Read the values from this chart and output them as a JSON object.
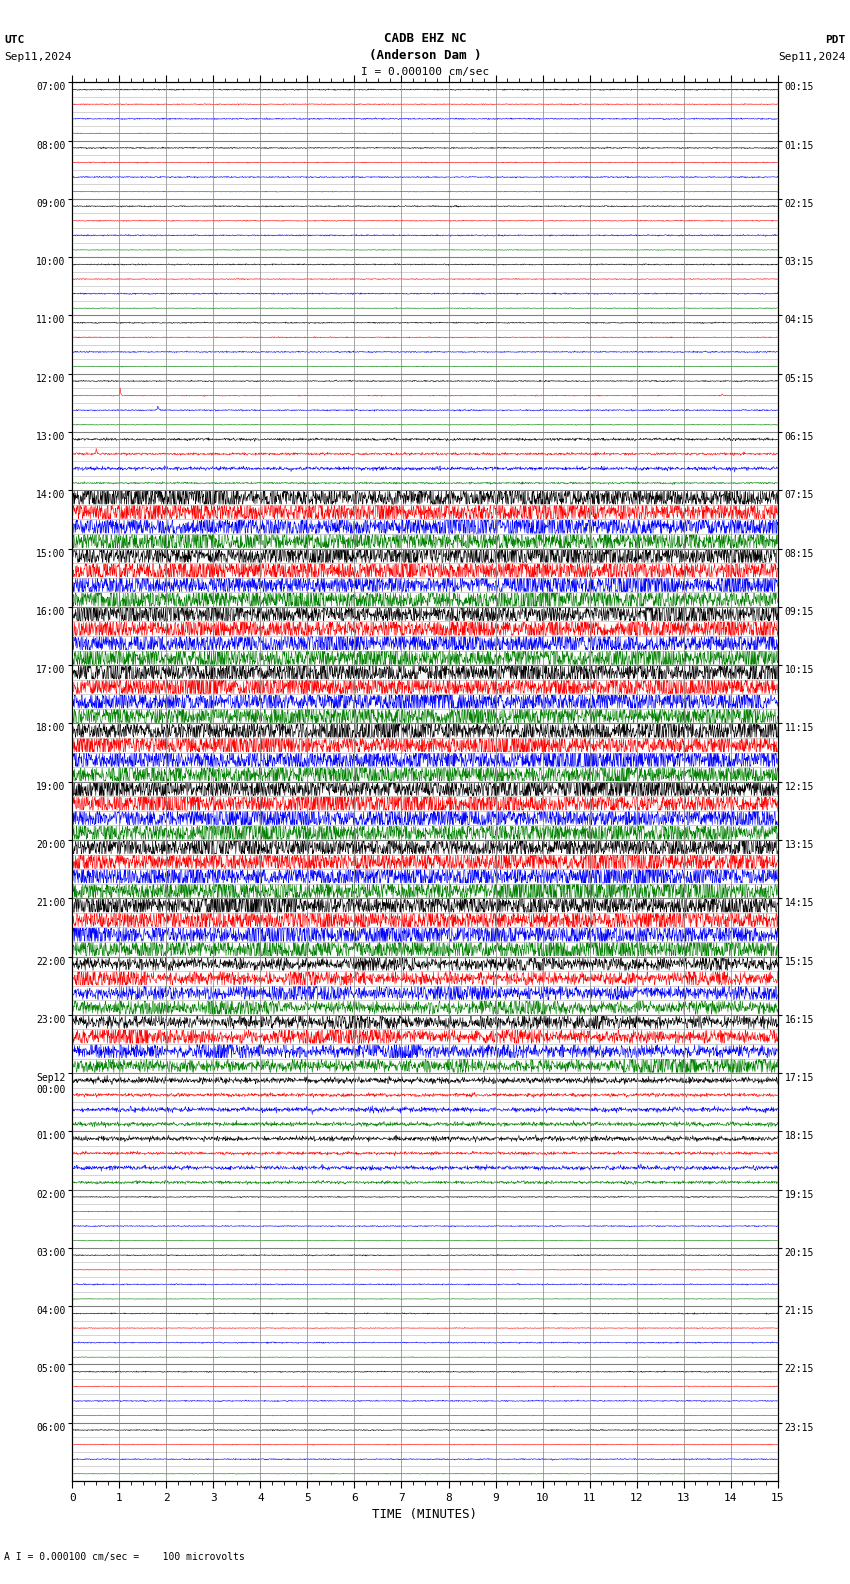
{
  "title_line1": "CADB EHZ NC",
  "title_line2": "(Anderson Dam )",
  "scale_label": "I = 0.000100 cm/sec",
  "utc_label": "UTC",
  "utc_date": "Sep11,2024",
  "pdt_label": "PDT",
  "pdt_date": "Sep11,2024",
  "bottom_label": "A I = 0.000100 cm/sec =    100 microvolts",
  "xlabel": "TIME (MINUTES)",
  "left_times": [
    "07:00",
    "08:00",
    "09:00",
    "10:00",
    "11:00",
    "12:00",
    "13:00",
    "14:00",
    "15:00",
    "16:00",
    "17:00",
    "18:00",
    "19:00",
    "20:00",
    "21:00",
    "22:00",
    "23:00",
    "Sep12\n00:00",
    "01:00",
    "02:00",
    "03:00",
    "04:00",
    "05:00",
    "06:00"
  ],
  "right_times": [
    "00:15",
    "01:15",
    "02:15",
    "03:15",
    "04:15",
    "05:15",
    "06:15",
    "07:15",
    "08:15",
    "09:15",
    "10:15",
    "11:15",
    "12:15",
    "13:15",
    "14:15",
    "15:15",
    "16:15",
    "17:15",
    "18:15",
    "19:15",
    "20:15",
    "21:15",
    "22:15",
    "23:15"
  ],
  "n_rows": 24,
  "n_minutes": 15,
  "background_color": "#ffffff",
  "grid_color": "#808080",
  "text_color": "#000000",
  "colors_order": [
    "black",
    "red",
    "blue",
    "green"
  ],
  "noisy_rows": [
    7,
    8,
    9,
    10,
    11,
    12,
    13,
    14
  ],
  "medium_rows": [
    15,
    16
  ],
  "semiquiet_rows": [
    6,
    17,
    18
  ],
  "quiet_rows": [
    0,
    1,
    2,
    3,
    4,
    5,
    19,
    20,
    21,
    22,
    23
  ]
}
